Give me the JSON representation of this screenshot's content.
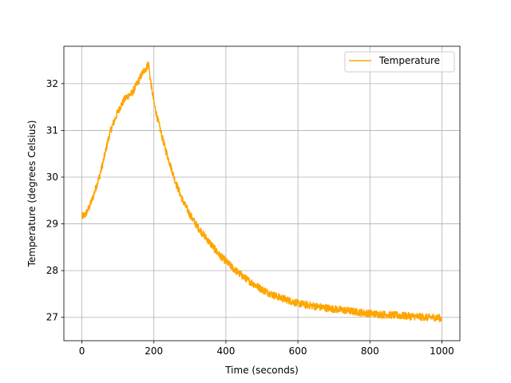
{
  "chart_data": {
    "type": "line",
    "title": "",
    "xlabel": "Time (seconds)",
    "ylabel": "Temperature (degrees Celsius)",
    "xlim": [
      -50,
      1050
    ],
    "ylim": [
      26.5,
      32.8
    ],
    "xticks": [
      0,
      200,
      400,
      600,
      800,
      1000
    ],
    "yticks": [
      27,
      28,
      29,
      30,
      31,
      32
    ],
    "grid": true,
    "legend": "top-right",
    "series": [
      {
        "name": "Temperature",
        "color": "#ffa500",
        "noise": 0.08,
        "x": [
          0,
          10,
          20,
          30,
          40,
          50,
          60,
          70,
          80,
          90,
          100,
          110,
          120,
          130,
          140,
          150,
          160,
          170,
          180,
          185,
          190,
          200,
          210,
          220,
          230,
          240,
          250,
          260,
          270,
          280,
          290,
          300,
          320,
          340,
          360,
          380,
          400,
          420,
          440,
          460,
          480,
          500,
          520,
          540,
          560,
          580,
          600,
          620,
          640,
          660,
          680,
          700,
          720,
          740,
          760,
          780,
          800,
          820,
          840,
          860,
          880,
          900,
          920,
          940,
          960,
          980,
          1000
        ],
        "y": [
          29.15,
          29.2,
          29.35,
          29.55,
          29.8,
          30.05,
          30.35,
          30.7,
          31.0,
          31.2,
          31.4,
          31.55,
          31.68,
          31.75,
          31.8,
          31.95,
          32.1,
          32.25,
          32.35,
          32.45,
          32.1,
          31.6,
          31.25,
          30.95,
          30.65,
          30.4,
          30.15,
          29.9,
          29.7,
          29.5,
          29.35,
          29.2,
          28.95,
          28.75,
          28.55,
          28.35,
          28.2,
          28.05,
          27.92,
          27.8,
          27.7,
          27.6,
          27.52,
          27.45,
          27.4,
          27.35,
          27.3,
          27.27,
          27.25,
          27.22,
          27.2,
          27.18,
          27.16,
          27.14,
          27.12,
          27.1,
          27.08,
          27.07,
          27.06,
          27.05,
          27.04,
          27.03,
          27.02,
          27.01,
          27.0,
          27.0,
          26.98
        ]
      }
    ]
  }
}
